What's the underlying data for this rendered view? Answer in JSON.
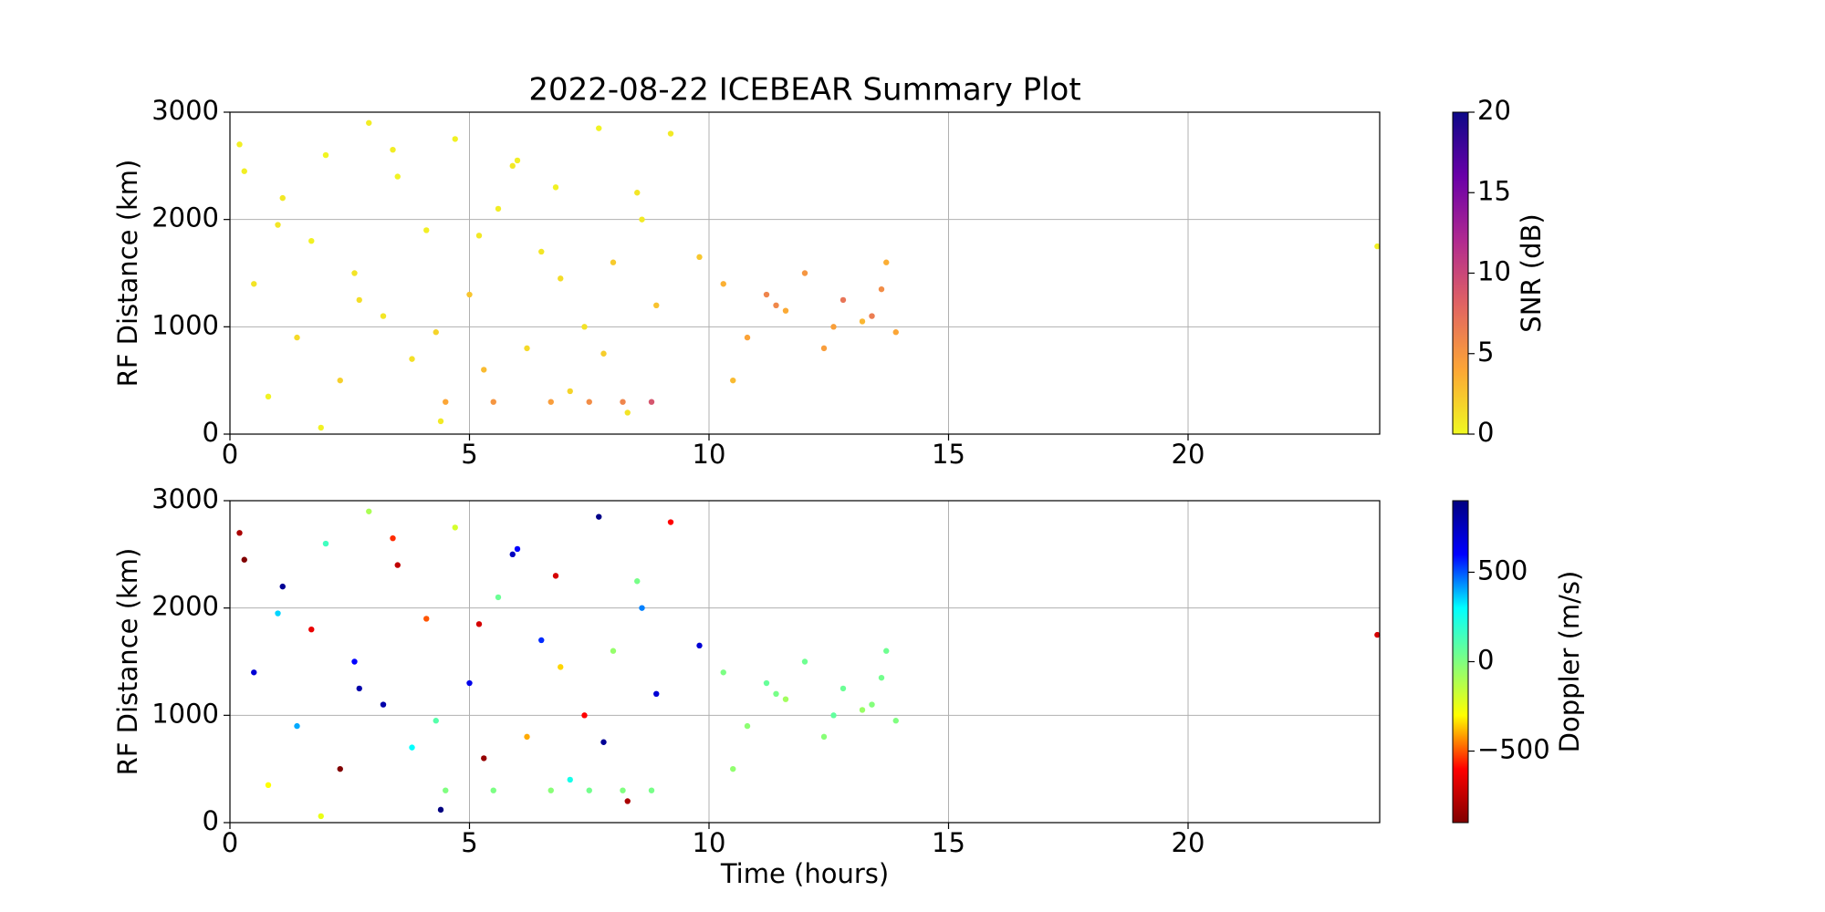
{
  "chart_data": [
    {
      "type": "scatter",
      "title": "2022-08-22 ICEBEAR Summary Plot",
      "ylabel": "RF Distance (km)",
      "xlim": [
        0,
        24
      ],
      "xticks": [
        0,
        5,
        10,
        15,
        20
      ],
      "ylim": [
        0,
        3000
      ],
      "yticks": [
        0,
        1000,
        2000,
        3000
      ],
      "grid": true,
      "x": [
        0.2,
        0.5,
        0.8,
        1.1,
        1.4,
        1.7,
        2.0,
        2.3,
        2.6,
        2.9,
        3.2,
        3.5,
        3.8,
        4.1,
        4.4,
        4.7,
        5.0,
        5.3,
        5.6,
        5.9,
        6.2,
        6.5,
        6.8,
        7.1,
        7.4,
        7.7,
        8.0,
        8.3,
        8.6,
        8.9,
        0.3,
        1.0,
        1.9,
        2.7,
        3.4,
        4.3,
        5.2,
        6.0,
        6.9,
        7.8,
        8.5,
        9.2,
        9.8,
        10.3,
        10.8,
        11.2,
        11.6,
        12.0,
        12.4,
        12.8,
        13.2,
        13.6,
        13.9,
        10.5,
        11.4,
        12.6,
        13.4,
        13.7,
        4.5,
        5.5,
        6.7,
        7.5,
        8.2,
        8.8,
        23.95
      ],
      "values": [
        2700,
        1400,
        350,
        2200,
        900,
        1800,
        2600,
        500,
        1500,
        2900,
        1100,
        2400,
        700,
        1900,
        120,
        2750,
        1300,
        600,
        2100,
        2500,
        800,
        1700,
        2300,
        400,
        1000,
        2850,
        1600,
        200,
        2000,
        1200,
        2450,
        1950,
        60,
        1250,
        2650,
        950,
        1850,
        2550,
        1450,
        750,
        2250,
        2800,
        1650,
        1400,
        900,
        1300,
        1150,
        1500,
        800,
        1250,
        1050,
        1350,
        950,
        500,
        1200,
        1000,
        1100,
        1600,
        300,
        300,
        300,
        300,
        300,
        300,
        1750
      ],
      "color_values": [
        0.5,
        1,
        0.3,
        0.8,
        1.5,
        0.4,
        0.2,
        2,
        1,
        0.6,
        0.9,
        0.3,
        1.2,
        0.5,
        0.7,
        0.4,
        2.5,
        3,
        0.6,
        0.8,
        1.5,
        0.9,
        0.4,
        1.8,
        1.1,
        0.3,
        2.2,
        1,
        0.7,
        2.6,
        0.5,
        0.9,
        0.4,
        1.3,
        0.6,
        1.8,
        0.8,
        0.5,
        1.4,
        2.1,
        0.9,
        0.7,
        2.4,
        3.5,
        4.2,
        6,
        3.8,
        5,
        4.5,
        7,
        3.2,
        5.5,
        4,
        3,
        5.8,
        4.4,
        6.5,
        3.6,
        4,
        5,
        4.5,
        5.5,
        6,
        9,
        0.5
      ],
      "colorbar_label": "SNR (dB)",
      "clim": [
        0,
        20
      ],
      "cticks": [
        0,
        5,
        10,
        15,
        20
      ],
      "colormap": [
        "#f0f921",
        "#fca636",
        "#e16462",
        "#b12a90",
        "#6a00a8",
        "#0d0887"
      ]
    },
    {
      "type": "scatter",
      "xlabel": "Time (hours)",
      "ylabel": "RF Distance (km)",
      "xlim": [
        0,
        24
      ],
      "xticks": [
        0,
        5,
        10,
        15,
        20
      ],
      "ylim": [
        0,
        3000
      ],
      "yticks": [
        0,
        1000,
        2000,
        3000
      ],
      "grid": true,
      "x": [
        0.2,
        0.5,
        0.8,
        1.1,
        1.4,
        1.7,
        2.0,
        2.3,
        2.6,
        2.9,
        3.2,
        3.5,
        3.8,
        4.1,
        4.4,
        4.7,
        5.0,
        5.3,
        5.6,
        5.9,
        6.2,
        6.5,
        6.8,
        7.1,
        7.4,
        7.7,
        8.0,
        8.3,
        8.6,
        8.9,
        0.3,
        1.0,
        1.9,
        2.7,
        3.4,
        4.3,
        5.2,
        6.0,
        6.9,
        7.8,
        8.5,
        9.2,
        9.8,
        10.3,
        10.8,
        11.2,
        11.6,
        12.0,
        12.4,
        12.8,
        13.2,
        13.6,
        13.9,
        10.5,
        11.4,
        12.6,
        13.4,
        13.7,
        4.5,
        5.5,
        6.7,
        7.5,
        8.2,
        8.8,
        23.95
      ],
      "values": [
        2700,
        1400,
        350,
        2200,
        900,
        1800,
        2600,
        500,
        1500,
        2900,
        1100,
        2400,
        700,
        1900,
        120,
        2750,
        1300,
        600,
        2100,
        2500,
        800,
        1700,
        2300,
        400,
        1000,
        2850,
        1600,
        200,
        2000,
        1200,
        2450,
        1950,
        60,
        1250,
        2650,
        950,
        1850,
        2550,
        1450,
        750,
        2250,
        2800,
        1650,
        1400,
        900,
        1300,
        1150,
        1500,
        800,
        1250,
        1050,
        1350,
        950,
        500,
        1200,
        1000,
        1100,
        1600,
        300,
        300,
        300,
        300,
        300,
        300,
        1750
      ],
      "color_values": [
        -800,
        700,
        -300,
        850,
        400,
        -650,
        150,
        -900,
        600,
        -100,
        800,
        -750,
        300,
        -500,
        900,
        -200,
        650,
        -850,
        50,
        750,
        -400,
        550,
        -700,
        250,
        -600,
        880,
        -50,
        -800,
        450,
        700,
        -900,
        350,
        -250,
        800,
        -550,
        100,
        -700,
        600,
        -350,
        850,
        20,
        -600,
        700,
        10,
        -30,
        60,
        -80,
        40,
        -20,
        50,
        -60,
        30,
        0,
        -40,
        20,
        70,
        -10,
        40,
        0,
        10,
        -20,
        30,
        0,
        20,
        -700
      ],
      "colorbar_label": "Doppler (m/s)",
      "clim": [
        -900,
        900
      ],
      "cticks": [
        {
          "value": -500,
          "label": "−500"
        },
        0,
        500
      ],
      "colormap": [
        "#800000",
        "#ff0000",
        "#ffff00",
        "#80ff80",
        "#00ffff",
        "#0000ff",
        "#000080"
      ]
    }
  ]
}
